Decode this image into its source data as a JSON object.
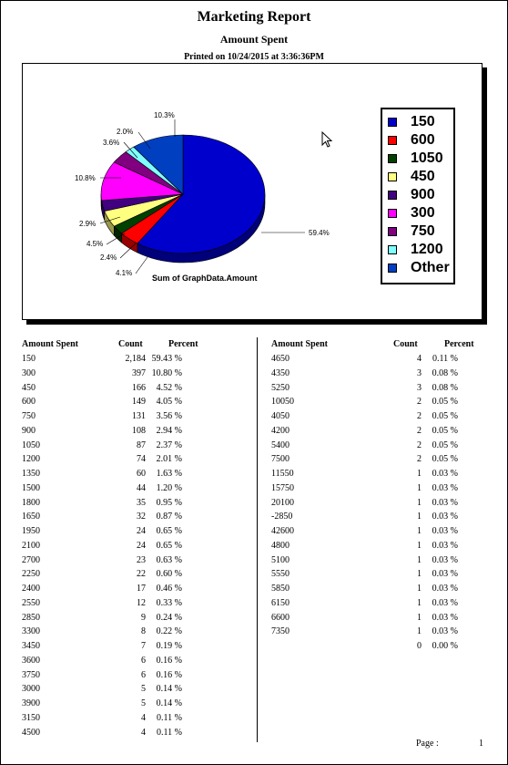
{
  "report": {
    "title": "Marketing Report",
    "subtitle": "Amount Spent",
    "printed": "Printed on 10/24/2015 at  3:36:36PM"
  },
  "chart_data": {
    "type": "pie",
    "caption": "Sum of GraphData.Amount",
    "slices": [
      {
        "name": "150",
        "label": "59.4%",
        "value": 59.4,
        "color": "#0000cc"
      },
      {
        "name": "600",
        "label": "4.1%",
        "value": 4.1,
        "color": "#ff0000"
      },
      {
        "name": "1050",
        "label": "2.4%",
        "value": 2.4,
        "color": "#004000"
      },
      {
        "name": "450",
        "label": "4.5%",
        "value": 4.5,
        "color": "#ffff80"
      },
      {
        "name": "900",
        "label": "2.9%",
        "value": 2.9,
        "color": "#400080"
      },
      {
        "name": "300",
        "label": "10.8%",
        "value": 10.8,
        "color": "#ff00ff"
      },
      {
        "name": "750",
        "label": "3.6%",
        "value": 3.6,
        "color": "#800080"
      },
      {
        "name": "1200",
        "label": "2.0%",
        "value": 2.0,
        "color": "#80ffff"
      },
      {
        "name": "Other",
        "label": "10.3%",
        "value": 10.3,
        "color": "#0040c0"
      }
    ]
  },
  "table": {
    "headers": [
      "Amount Spent",
      "Count",
      "Percent"
    ],
    "left": [
      [
        "150",
        "2,184",
        "59.43 %"
      ],
      [
        "300",
        "397",
        "10.80 %"
      ],
      [
        "450",
        "166",
        "4.52 %"
      ],
      [
        "600",
        "149",
        "4.05 %"
      ],
      [
        "750",
        "131",
        "3.56 %"
      ],
      [
        "900",
        "108",
        "2.94 %"
      ],
      [
        "1050",
        "87",
        "2.37 %"
      ],
      [
        "1200",
        "74",
        "2.01 %"
      ],
      [
        "1350",
        "60",
        "1.63 %"
      ],
      [
        "1500",
        "44",
        "1.20 %"
      ],
      [
        "1800",
        "35",
        "0.95 %"
      ],
      [
        "1650",
        "32",
        "0.87 %"
      ],
      [
        "1950",
        "24",
        "0.65 %"
      ],
      [
        "2100",
        "24",
        "0.65 %"
      ],
      [
        "2700",
        "23",
        "0.63 %"
      ],
      [
        "2250",
        "22",
        "0.60 %"
      ],
      [
        "2400",
        "17",
        "0.46 %"
      ],
      [
        "2550",
        "12",
        "0.33 %"
      ],
      [
        "2850",
        "9",
        "0.24 %"
      ],
      [
        "3300",
        "8",
        "0.22 %"
      ],
      [
        "3450",
        "7",
        "0.19 %"
      ],
      [
        "3600",
        "6",
        "0.16 %"
      ],
      [
        "3750",
        "6",
        "0.16 %"
      ],
      [
        "3000",
        "5",
        "0.14 %"
      ],
      [
        "3900",
        "5",
        "0.14 %"
      ],
      [
        "3150",
        "4",
        "0.11 %"
      ],
      [
        "4500",
        "4",
        "0.11 %"
      ]
    ],
    "right": [
      [
        "4650",
        "4",
        "0.11 %"
      ],
      [
        "4350",
        "3",
        "0.08 %"
      ],
      [
        "5250",
        "3",
        "0.08 %"
      ],
      [
        "10050",
        "2",
        "0.05 %"
      ],
      [
        "4050",
        "2",
        "0.05 %"
      ],
      [
        "4200",
        "2",
        "0.05 %"
      ],
      [
        "5400",
        "2",
        "0.05 %"
      ],
      [
        "7500",
        "2",
        "0.05 %"
      ],
      [
        "11550",
        "1",
        "0.03 %"
      ],
      [
        "15750",
        "1",
        "0.03 %"
      ],
      [
        "20100",
        "1",
        "0.03 %"
      ],
      [
        "-2850",
        "1",
        "0.03 %"
      ],
      [
        "42600",
        "1",
        "0.03 %"
      ],
      [
        "4800",
        "1",
        "0.03 %"
      ],
      [
        "5100",
        "1",
        "0.03 %"
      ],
      [
        "5550",
        "1",
        "0.03 %"
      ],
      [
        "5850",
        "1",
        "0.03 %"
      ],
      [
        "6150",
        "1",
        "0.03 %"
      ],
      [
        "6600",
        "1",
        "0.03 %"
      ],
      [
        "7350",
        "1",
        "0.03 %"
      ],
      [
        "",
        "0",
        "0.00 %"
      ]
    ]
  },
  "footer": {
    "page_label": "Page :",
    "page_number": "1"
  },
  "icons": {
    "cursor": "mouse-pointer-icon"
  }
}
